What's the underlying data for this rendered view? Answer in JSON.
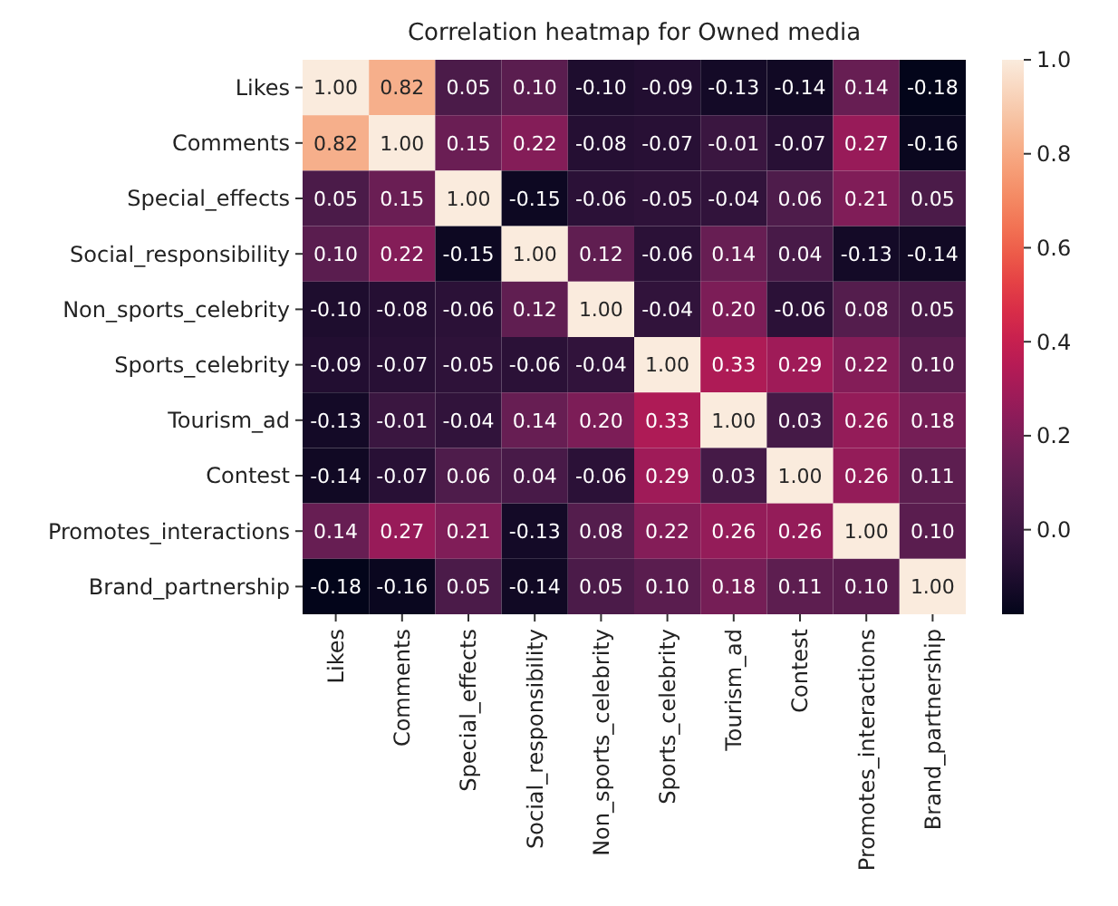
{
  "chart_data": {
    "type": "heatmap",
    "title": "Correlation heatmap for Owned media",
    "categories": [
      "Likes",
      "Comments",
      "Special_effects",
      "Social_responsibility",
      "Non_sports_celebrity",
      "Sports_celebrity",
      "Tourism_ad",
      "Contest",
      "Promotes_interactions",
      "Brand_partnership"
    ],
    "y_categories": [
      "Likes",
      "Comments",
      "Special_effects",
      "Social_responsibility",
      "Non_sports_celebrity",
      "Sports_celebrity",
      "Tourism_ad",
      "Contest",
      "Promotes_interactions",
      "Brand_partnership"
    ],
    "cells": [
      [
        1.0,
        0.82,
        0.05,
        0.1,
        -0.1,
        -0.09,
        -0.13,
        -0.14,
        0.14,
        -0.18
      ],
      [
        0.82,
        1.0,
        0.15,
        0.22,
        -0.08,
        -0.07,
        -0.01,
        -0.07,
        0.27,
        -0.16
      ],
      [
        0.05,
        0.15,
        1.0,
        -0.15,
        -0.06,
        -0.05,
        -0.04,
        0.06,
        0.21,
        0.05
      ],
      [
        0.1,
        0.22,
        -0.15,
        1.0,
        0.12,
        -0.06,
        0.14,
        0.04,
        -0.13,
        -0.14
      ],
      [
        -0.1,
        -0.08,
        -0.06,
        0.12,
        1.0,
        -0.04,
        0.2,
        -0.06,
        0.08,
        0.05
      ],
      [
        -0.09,
        -0.07,
        -0.05,
        -0.06,
        -0.04,
        1.0,
        0.33,
        0.29,
        0.22,
        0.1
      ],
      [
        -0.13,
        -0.01,
        -0.04,
        0.14,
        0.2,
        0.33,
        1.0,
        0.03,
        0.26,
        0.18
      ],
      [
        -0.14,
        -0.07,
        0.06,
        0.04,
        -0.06,
        0.29,
        0.03,
        1.0,
        0.26,
        0.11
      ],
      [
        0.14,
        0.27,
        0.21,
        -0.13,
        0.08,
        0.22,
        0.26,
        0.26,
        1.0,
        0.1
      ],
      [
        -0.18,
        -0.16,
        0.05,
        -0.14,
        0.05,
        0.1,
        0.18,
        0.11,
        0.1,
        1.0
      ]
    ],
    "clim": [
      -0.18,
      1.0
    ],
    "cticks": [
      {
        "value": 0,
        "label": "0.0"
      },
      0.2,
      0.4,
      0.6,
      0.8,
      {
        "value": 1,
        "label": "1.0"
      }
    ],
    "cell_labels": [
      [
        "1.00",
        "0.82",
        "0.05",
        "0.10",
        "-0.10",
        "-0.09",
        "-0.13",
        "-0.14",
        "0.14",
        "-0.18"
      ],
      [
        "0.82",
        "1.00",
        "0.15",
        "0.22",
        "-0.08",
        "-0.07",
        "-0.01",
        "-0.07",
        "0.27",
        "-0.16"
      ],
      [
        "0.05",
        "0.15",
        "1.00",
        "-0.15",
        "-0.06",
        "-0.05",
        "-0.04",
        "0.06",
        "0.21",
        "0.05"
      ],
      [
        "0.10",
        "0.22",
        "-0.15",
        "1.00",
        "0.12",
        "-0.06",
        "0.14",
        "0.04",
        "-0.13",
        "-0.14"
      ],
      [
        "-0.10",
        "-0.08",
        "-0.06",
        "0.12",
        "1.00",
        "-0.04",
        "0.20",
        "-0.06",
        "0.08",
        "0.05"
      ],
      [
        "-0.09",
        "-0.07",
        "-0.05",
        "-0.06",
        "-0.04",
        "1.00",
        "0.33",
        "0.29",
        "0.22",
        "0.10"
      ],
      [
        "-0.13",
        "-0.01",
        "-0.04",
        "0.14",
        "0.20",
        "0.33",
        "1.00",
        "0.03",
        "0.26",
        "0.18"
      ],
      [
        "-0.14",
        "-0.07",
        "0.06",
        "0.04",
        "-0.06",
        "0.29",
        "0.03",
        "1.00",
        "0.26",
        "0.11"
      ],
      [
        "0.14",
        "0.27",
        "0.21",
        "-0.13",
        "0.08",
        "0.22",
        "0.26",
        "0.26",
        "1.00",
        "0.10"
      ],
      [
        "-0.18",
        "-0.16",
        "0.05",
        "-0.14",
        "0.05",
        "0.10",
        "0.18",
        "0.11",
        "0.10",
        "1.00"
      ]
    ]
  }
}
